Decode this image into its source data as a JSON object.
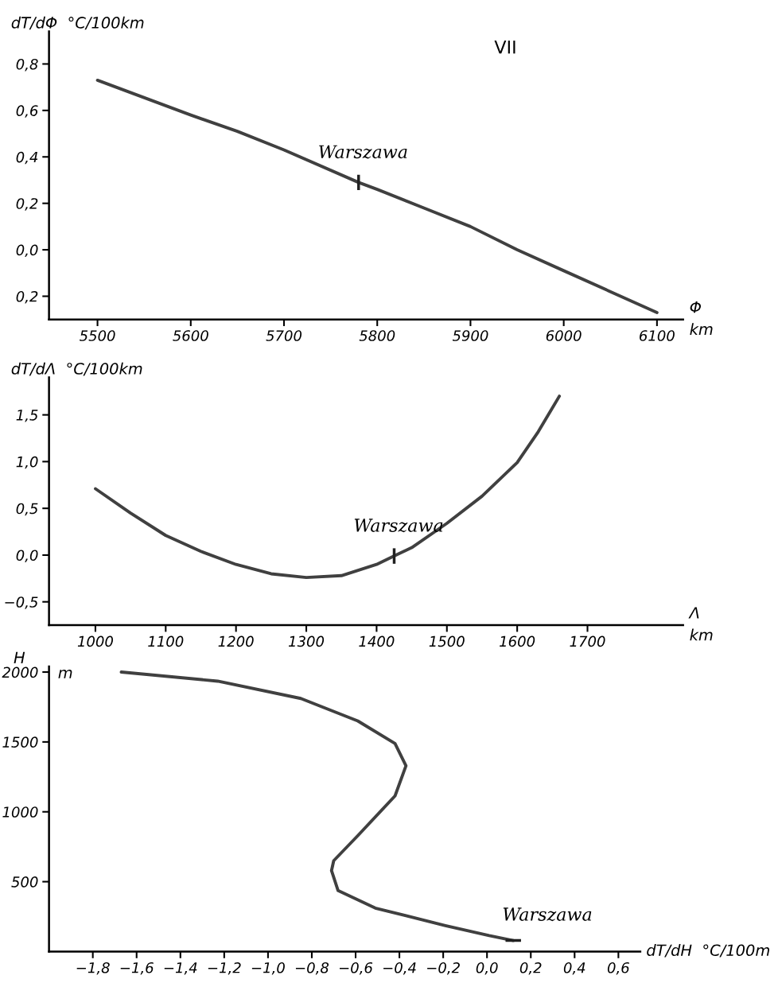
{
  "chart_data": [
    {
      "type": "line",
      "title": "VII",
      "xlabel": "Φ\nkm",
      "ylabel": "dT/dΦ  °C/100km",
      "x": [
        5500,
        5600,
        5650,
        5700,
        5780,
        5800,
        5850,
        5900,
        5950,
        6000,
        6050,
        6100
      ],
      "series": [
        {
          "color": "#404040",
          "values": [
            0.73,
            0.58,
            0.51,
            0.43,
            0.29,
            0.26,
            0.18,
            0.1,
            0.0,
            -0.09,
            -0.18,
            -0.27
          ]
        }
      ],
      "xlim": [
        5448,
        6128
      ],
      "xticks": [
        5500,
        5600,
        5700,
        5800,
        5900,
        6000,
        6100
      ],
      "ylim": [
        -0.3,
        0.94
      ],
      "yticks": [
        {
          "value": 0.8,
          "label": "0,8"
        },
        {
          "value": 0.6,
          "label": "0,6"
        },
        {
          "value": 0.4,
          "label": "0,4"
        },
        {
          "value": 0.2,
          "label": "0,2"
        },
        {
          "value": 0.0,
          "label": "0,0"
        },
        {
          "value": -0.2,
          "label": "0,2"
        }
      ],
      "annotations": [
        {
          "text": "Warszawa",
          "x": 5780,
          "y": 0.29
        }
      ],
      "grid": false,
      "marker": "none",
      "line_style": "solid"
    },
    {
      "type": "line",
      "xlabel": "Λ\nkm",
      "ylabel": "dT/dΛ  °C/100km",
      "x": [
        1000,
        1050,
        1100,
        1150,
        1200,
        1250,
        1300,
        1350,
        1400,
        1425,
        1450,
        1500,
        1550,
        1600,
        1630,
        1660
      ],
      "series": [
        {
          "color": "#404040",
          "values": [
            0.71,
            0.45,
            0.21,
            0.04,
            -0.1,
            -0.2,
            -0.24,
            -0.22,
            -0.1,
            -0.01,
            0.08,
            0.34,
            0.63,
            0.99,
            1.32,
            1.7
          ]
        }
      ],
      "xlim": [
        934,
        1836
      ],
      "xticks": [
        1000,
        1100,
        1200,
        1300,
        1400,
        1500,
        1600,
        1700
      ],
      "ylim": [
        -0.75,
        1.9
      ],
      "yticks": [
        {
          "value": 1.5,
          "label": "1,5"
        },
        {
          "value": 1.0,
          "label": "1,0"
        },
        {
          "value": 0.5,
          "label": "0,5"
        },
        {
          "value": 0.0,
          "label": "0,0"
        },
        {
          "value": -0.5,
          "label": "−0,5"
        }
      ],
      "annotations": [
        {
          "text": "Warszawa",
          "x": 1425,
          "y": -0.01
        }
      ],
      "grid": false,
      "marker": "none",
      "line_style": "solid"
    },
    {
      "type": "line",
      "orientation": "horizontal",
      "xlabel": "dT/dH  °C/100m",
      "ylabel": "H",
      "x": [
        2000,
        1935,
        1811,
        1650,
        1489,
        1329,
        1114,
        829,
        650,
        579,
        436,
        311,
        186,
        114,
        79
      ],
      "series": [
        {
          "color": "#404040",
          "values": [
            -1.67,
            -1.23,
            -0.85,
            -0.59,
            -0.42,
            -0.37,
            -0.42,
            -0.59,
            -0.7,
            -0.71,
            -0.68,
            -0.51,
            -0.19,
            0.01,
            0.12
          ]
        }
      ],
      "xlim": [
        -2.0,
        0.7
      ],
      "xticks": [
        {
          "value": -1.8,
          "label": "−1,8"
        },
        {
          "value": -1.6,
          "label": "−1,6"
        },
        {
          "value": -1.4,
          "label": "−1,4"
        },
        {
          "value": -1.2,
          "label": "−1,2"
        },
        {
          "value": -1.0,
          "label": "−1,0"
        },
        {
          "value": -0.8,
          "label": "−0,8"
        },
        {
          "value": -0.6,
          "label": "−0,6"
        },
        {
          "value": -0.4,
          "label": "−0,4"
        },
        {
          "value": -0.2,
          "label": "−0,2"
        },
        {
          "value": 0.0,
          "label": "0,0"
        },
        {
          "value": 0.2,
          "label": "0,2"
        },
        {
          "value": 0.4,
          "label": "0,4"
        },
        {
          "value": 0.6,
          "label": "0,6"
        }
      ],
      "ylim": [
        0,
        2040
      ],
      "yticks": [
        500,
        1000,
        1500,
        2000
      ],
      "annotations": [
        {
          "text": "Warszawa",
          "x": 0.12,
          "y": 79
        },
        "m"
      ],
      "grid": false,
      "marker": "none",
      "line_style": "solid"
    }
  ]
}
